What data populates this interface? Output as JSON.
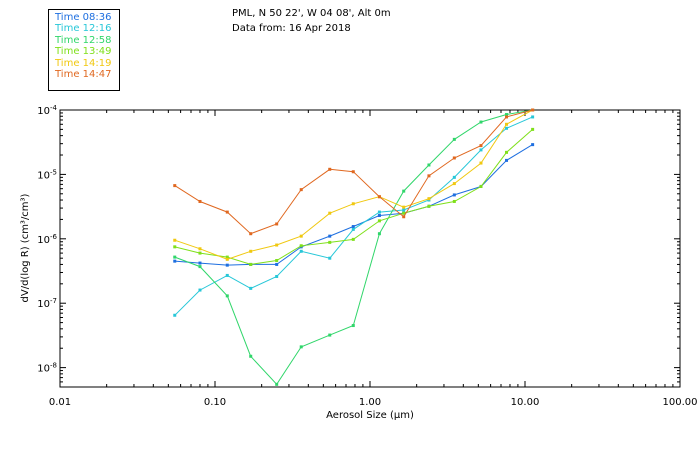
{
  "header": {
    "line1": "PML, N 50 22', W 04 08', Alt 0m",
    "line2": "Data from: 16 Apr 2018"
  },
  "chart_data": {
    "type": "line",
    "x_scale": "log",
    "y_scale": "log",
    "xlim": [
      0.01,
      100
    ],
    "ylim": [
      5e-09,
      0.0001
    ],
    "xlabel": "Aerosol Size (μm)",
    "ylabel": "dV/d(log R)  (cm³/cm³)",
    "x_tick_labels": [
      "0.01",
      "0.10",
      "1.00",
      "10.00",
      "100.00"
    ],
    "y_tick_labels": [
      {
        "base": "10",
        "exp": "-4"
      },
      {
        "base": "10",
        "exp": "-5"
      },
      {
        "base": "10",
        "exp": "-6"
      },
      {
        "base": "10",
        "exp": "-7"
      },
      {
        "base": "10",
        "exp": "-8"
      }
    ],
    "grid": false,
    "legend_position": "top-left",
    "x": [
      0.055,
      0.08,
      0.12,
      0.17,
      0.25,
      0.36,
      0.55,
      0.78,
      1.15,
      1.65,
      2.4,
      3.5,
      5.2,
      7.6,
      11.2
    ],
    "series": [
      {
        "name": "Time 08:36",
        "color": "#1e6fe0",
        "values": [
          4.5e-07,
          4.2e-07,
          3.9e-07,
          4e-07,
          4e-07,
          7.5e-07,
          1.1e-06,
          1.55e-06,
          2.3e-06,
          2.5e-06,
          3.2e-06,
          4.8e-06,
          6.5e-06,
          1.65e-05,
          2.9e-05
        ]
      },
      {
        "name": "Time 12:16",
        "color": "#27c7d8",
        "values": [
          6.5e-08,
          1.6e-07,
          2.7e-07,
          1.7e-07,
          2.6e-07,
          6.4e-07,
          5e-07,
          1.4e-06,
          2.6e-06,
          2.8e-06,
          4e-06,
          9e-06,
          2.4e-05,
          5.2e-05,
          7.8e-05
        ]
      },
      {
        "name": "Time 12:58",
        "color": "#30d66a",
        "values": [
          5.2e-07,
          3.7e-07,
          1.3e-07,
          1.5e-08,
          5.5e-09,
          2.1e-08,
          3.2e-08,
          4.5e-08,
          1.2e-06,
          5.5e-06,
          1.4e-05,
          3.5e-05,
          6.5e-05,
          8.5e-05,
          0.0001
        ]
      },
      {
        "name": "Time 13:49",
        "color": "#7fe01a",
        "values": [
          7.5e-07,
          6e-07,
          5.2e-07,
          4e-07,
          4.6e-07,
          7.8e-07,
          8.8e-07,
          9.8e-07,
          1.9e-06,
          2.5e-06,
          3.2e-06,
          3.8e-06,
          6.5e-06,
          2.2e-05,
          5e-05
        ]
      },
      {
        "name": "Time 14:19",
        "color": "#f0c810",
        "values": [
          9.5e-07,
          7e-07,
          4.8e-07,
          6.4e-07,
          8e-07,
          1.1e-06,
          2.5e-06,
          3.5e-06,
          4.5e-06,
          3.1e-06,
          4.2e-06,
          7.2e-06,
          1.5e-05,
          6e-05,
          0.0001
        ]
      },
      {
        "name": "Time 14:47",
        "color": "#e06820",
        "values": [
          6.7e-06,
          3.8e-06,
          2.6e-06,
          1.2e-06,
          1.7e-06,
          5.8e-06,
          1.2e-05,
          1.1e-05,
          4.5e-06,
          2.2e-06,
          9.5e-06,
          1.8e-05,
          2.8e-05,
          7.8e-05,
          0.0001
        ]
      }
    ]
  }
}
